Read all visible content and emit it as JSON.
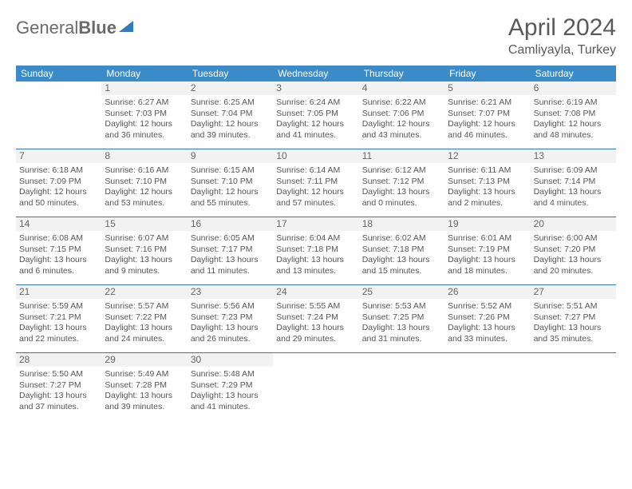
{
  "logo": {
    "part1": "General",
    "part2": "Blue"
  },
  "title": "April 2024",
  "location": "Camliyayla, Turkey",
  "colors": {
    "header_bg": "#3b8bc9",
    "week_border": "#3b74a9",
    "daynum_bg": "#f2f2f2",
    "text": "#555555",
    "logo_accent": "#2f7bbf"
  },
  "typography": {
    "title_fontsize": 30,
    "location_fontsize": 16,
    "dow_fontsize": 12,
    "body_fontsize": 10.5
  },
  "dow": [
    "Sunday",
    "Monday",
    "Tuesday",
    "Wednesday",
    "Thursday",
    "Friday",
    "Saturday"
  ],
  "weeks": [
    [
      null,
      {
        "n": "1",
        "sr": "Sunrise: 6:27 AM",
        "ss": "Sunset: 7:03 PM",
        "d1": "Daylight: 12 hours",
        "d2": "and 36 minutes."
      },
      {
        "n": "2",
        "sr": "Sunrise: 6:25 AM",
        "ss": "Sunset: 7:04 PM",
        "d1": "Daylight: 12 hours",
        "d2": "and 39 minutes."
      },
      {
        "n": "3",
        "sr": "Sunrise: 6:24 AM",
        "ss": "Sunset: 7:05 PM",
        "d1": "Daylight: 12 hours",
        "d2": "and 41 minutes."
      },
      {
        "n": "4",
        "sr": "Sunrise: 6:22 AM",
        "ss": "Sunset: 7:06 PM",
        "d1": "Daylight: 12 hours",
        "d2": "and 43 minutes."
      },
      {
        "n": "5",
        "sr": "Sunrise: 6:21 AM",
        "ss": "Sunset: 7:07 PM",
        "d1": "Daylight: 12 hours",
        "d2": "and 46 minutes."
      },
      {
        "n": "6",
        "sr": "Sunrise: 6:19 AM",
        "ss": "Sunset: 7:08 PM",
        "d1": "Daylight: 12 hours",
        "d2": "and 48 minutes."
      }
    ],
    [
      {
        "n": "7",
        "sr": "Sunrise: 6:18 AM",
        "ss": "Sunset: 7:09 PM",
        "d1": "Daylight: 12 hours",
        "d2": "and 50 minutes."
      },
      {
        "n": "8",
        "sr": "Sunrise: 6:16 AM",
        "ss": "Sunset: 7:10 PM",
        "d1": "Daylight: 12 hours",
        "d2": "and 53 minutes."
      },
      {
        "n": "9",
        "sr": "Sunrise: 6:15 AM",
        "ss": "Sunset: 7:10 PM",
        "d1": "Daylight: 12 hours",
        "d2": "and 55 minutes."
      },
      {
        "n": "10",
        "sr": "Sunrise: 6:14 AM",
        "ss": "Sunset: 7:11 PM",
        "d1": "Daylight: 12 hours",
        "d2": "and 57 minutes."
      },
      {
        "n": "11",
        "sr": "Sunrise: 6:12 AM",
        "ss": "Sunset: 7:12 PM",
        "d1": "Daylight: 13 hours",
        "d2": "and 0 minutes."
      },
      {
        "n": "12",
        "sr": "Sunrise: 6:11 AM",
        "ss": "Sunset: 7:13 PM",
        "d1": "Daylight: 13 hours",
        "d2": "and 2 minutes."
      },
      {
        "n": "13",
        "sr": "Sunrise: 6:09 AM",
        "ss": "Sunset: 7:14 PM",
        "d1": "Daylight: 13 hours",
        "d2": "and 4 minutes."
      }
    ],
    [
      {
        "n": "14",
        "sr": "Sunrise: 6:08 AM",
        "ss": "Sunset: 7:15 PM",
        "d1": "Daylight: 13 hours",
        "d2": "and 6 minutes."
      },
      {
        "n": "15",
        "sr": "Sunrise: 6:07 AM",
        "ss": "Sunset: 7:16 PM",
        "d1": "Daylight: 13 hours",
        "d2": "and 9 minutes."
      },
      {
        "n": "16",
        "sr": "Sunrise: 6:05 AM",
        "ss": "Sunset: 7:17 PM",
        "d1": "Daylight: 13 hours",
        "d2": "and 11 minutes."
      },
      {
        "n": "17",
        "sr": "Sunrise: 6:04 AM",
        "ss": "Sunset: 7:18 PM",
        "d1": "Daylight: 13 hours",
        "d2": "and 13 minutes."
      },
      {
        "n": "18",
        "sr": "Sunrise: 6:02 AM",
        "ss": "Sunset: 7:18 PM",
        "d1": "Daylight: 13 hours",
        "d2": "and 15 minutes."
      },
      {
        "n": "19",
        "sr": "Sunrise: 6:01 AM",
        "ss": "Sunset: 7:19 PM",
        "d1": "Daylight: 13 hours",
        "d2": "and 18 minutes."
      },
      {
        "n": "20",
        "sr": "Sunrise: 6:00 AM",
        "ss": "Sunset: 7:20 PM",
        "d1": "Daylight: 13 hours",
        "d2": "and 20 minutes."
      }
    ],
    [
      {
        "n": "21",
        "sr": "Sunrise: 5:59 AM",
        "ss": "Sunset: 7:21 PM",
        "d1": "Daylight: 13 hours",
        "d2": "and 22 minutes."
      },
      {
        "n": "22",
        "sr": "Sunrise: 5:57 AM",
        "ss": "Sunset: 7:22 PM",
        "d1": "Daylight: 13 hours",
        "d2": "and 24 minutes."
      },
      {
        "n": "23",
        "sr": "Sunrise: 5:56 AM",
        "ss": "Sunset: 7:23 PM",
        "d1": "Daylight: 13 hours",
        "d2": "and 26 minutes."
      },
      {
        "n": "24",
        "sr": "Sunrise: 5:55 AM",
        "ss": "Sunset: 7:24 PM",
        "d1": "Daylight: 13 hours",
        "d2": "and 29 minutes."
      },
      {
        "n": "25",
        "sr": "Sunrise: 5:53 AM",
        "ss": "Sunset: 7:25 PM",
        "d1": "Daylight: 13 hours",
        "d2": "and 31 minutes."
      },
      {
        "n": "26",
        "sr": "Sunrise: 5:52 AM",
        "ss": "Sunset: 7:26 PM",
        "d1": "Daylight: 13 hours",
        "d2": "and 33 minutes."
      },
      {
        "n": "27",
        "sr": "Sunrise: 5:51 AM",
        "ss": "Sunset: 7:27 PM",
        "d1": "Daylight: 13 hours",
        "d2": "and 35 minutes."
      }
    ],
    [
      {
        "n": "28",
        "sr": "Sunrise: 5:50 AM",
        "ss": "Sunset: 7:27 PM",
        "d1": "Daylight: 13 hours",
        "d2": "and 37 minutes."
      },
      {
        "n": "29",
        "sr": "Sunrise: 5:49 AM",
        "ss": "Sunset: 7:28 PM",
        "d1": "Daylight: 13 hours",
        "d2": "and 39 minutes."
      },
      {
        "n": "30",
        "sr": "Sunrise: 5:48 AM",
        "ss": "Sunset: 7:29 PM",
        "d1": "Daylight: 13 hours",
        "d2": "and 41 minutes."
      },
      null,
      null,
      null,
      null
    ]
  ]
}
